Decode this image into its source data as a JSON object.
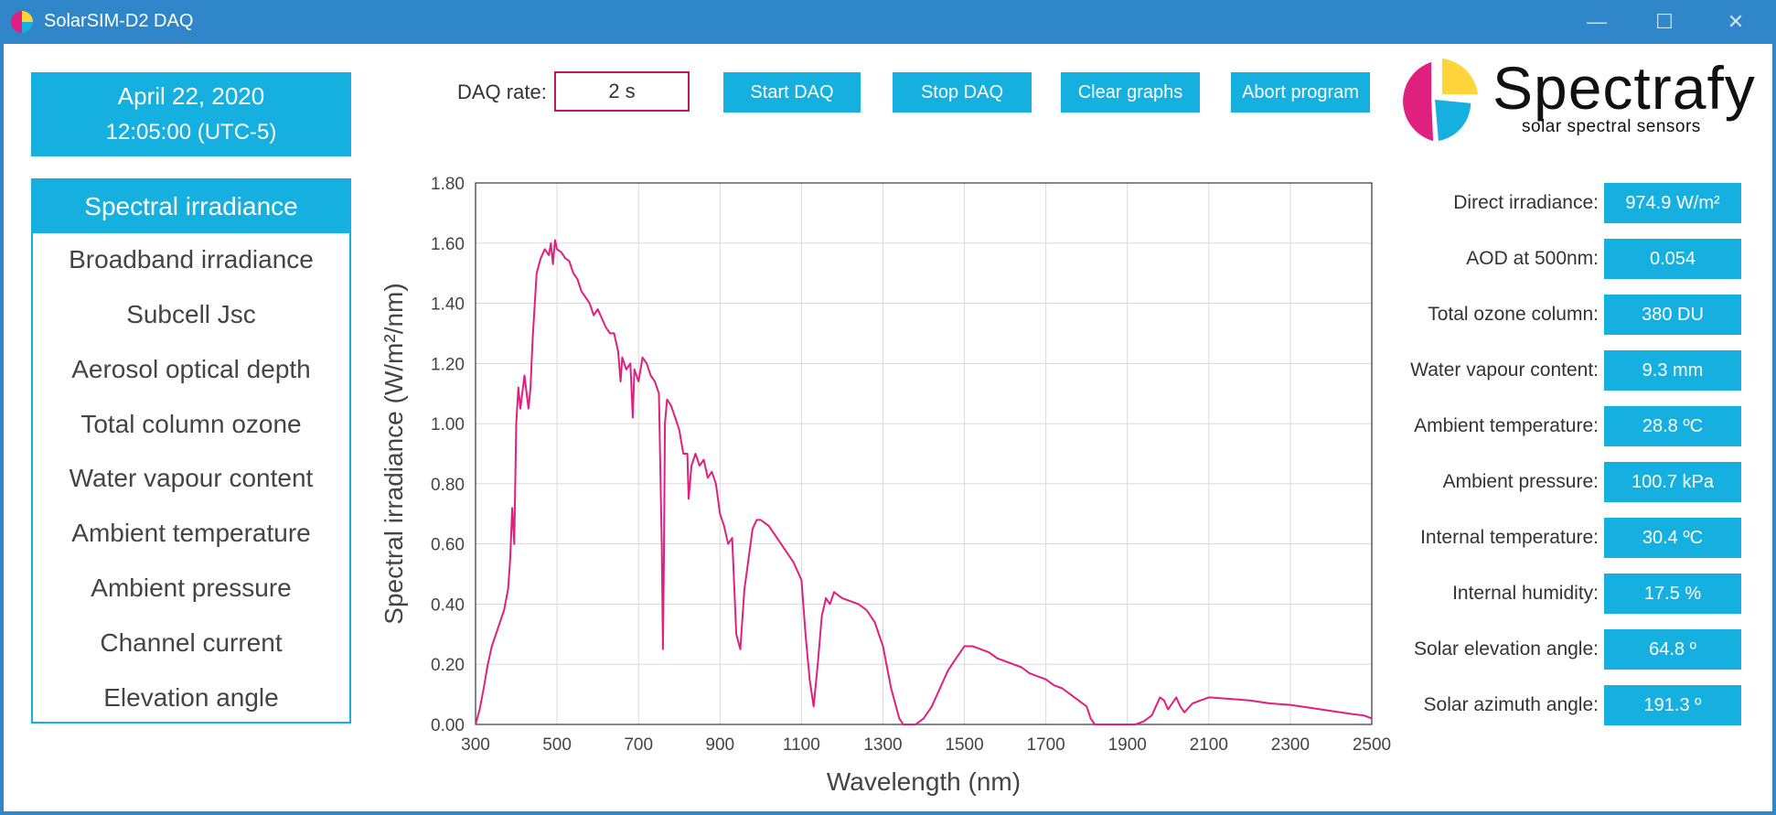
{
  "window": {
    "title": "SolarSIM-D2 DAQ",
    "minimize": "—",
    "maximize": "☐",
    "close": "✕"
  },
  "datetime": {
    "date": "April 22, 2020",
    "time": "12:05:00 (UTC-5)"
  },
  "menu": {
    "items": [
      "Spectral irradiance",
      "Broadband irradiance",
      "Subcell Jsc",
      "Aerosol optical depth",
      "Total column ozone",
      "Water vapour content",
      "Ambient temperature",
      "Ambient pressure",
      "Channel current",
      "Elevation angle"
    ],
    "active_index": 0
  },
  "toolbar": {
    "daq_rate_label": "DAQ rate:",
    "daq_rate_value": "2 s",
    "start": "Start DAQ",
    "stop": "Stop DAQ",
    "clear": "Clear graphs",
    "abort": "Abort program"
  },
  "logo": {
    "name": "Spectrafy",
    "tagline": "solar spectral sensors",
    "colors": [
      "#e0207e",
      "#ffd43b",
      "#16b0e0"
    ]
  },
  "readouts": [
    {
      "label": "Direct irradiance:",
      "value": "974.9 W/m²"
    },
    {
      "label": "AOD at 500nm:",
      "value": "0.054"
    },
    {
      "label": "Total ozone column:",
      "value": "380 DU"
    },
    {
      "label": "Water vapour content:",
      "value": "9.3 mm"
    },
    {
      "label": "Ambient temperature:",
      "value": "28.8 ºC"
    },
    {
      "label": "Ambient pressure:",
      "value": "100.7 kPa"
    },
    {
      "label": "Internal temperature:",
      "value": "30.4 ºC"
    },
    {
      "label": "Internal humidity:",
      "value": "17.5 %"
    },
    {
      "label": "Solar elevation angle:",
      "value": "64.8 º"
    },
    {
      "label": "Solar azimuth angle:",
      "value": "191.3 º"
    }
  ],
  "colors": {
    "accent": "#16b0e0",
    "titlebar": "#2f86c8",
    "series": "#e0207e"
  },
  "chart_data": {
    "type": "line",
    "title": "",
    "xlabel": "Wavelength (nm)",
    "ylabel": "Spectral irradiance (W/m²/nm)",
    "xlim": [
      300,
      2500
    ],
    "ylim": [
      0,
      1.8
    ],
    "xticks": [
      "300",
      "500",
      "700",
      "900",
      "1100",
      "1300",
      "1500",
      "1700",
      "1900",
      "2100",
      "2300",
      "2500"
    ],
    "yticks": [
      "0.00",
      "0.20",
      "0.40",
      "0.60",
      "0.80",
      "1.00",
      "1.20",
      "1.40",
      "1.60",
      "1.80"
    ],
    "grid": true,
    "series": [
      {
        "color": "#e0207e",
        "x": [
          300,
          310,
          320,
          330,
          340,
          350,
          360,
          370,
          380,
          385,
          390,
          395,
          400,
          405,
          410,
          420,
          430,
          435,
          440,
          450,
          460,
          470,
          480,
          485,
          490,
          495,
          500,
          510,
          520,
          530,
          540,
          550,
          560,
          570,
          580,
          590,
          600,
          610,
          620,
          630,
          640,
          650,
          656,
          660,
          670,
          680,
          686,
          690,
          700,
          710,
          720,
          730,
          740,
          750,
          757,
          760,
          762,
          765,
          770,
          780,
          790,
          800,
          810,
          820,
          823,
          830,
          840,
          850,
          860,
          870,
          880,
          890,
          900,
          910,
          920,
          930,
          940,
          950,
          960,
          970,
          980,
          990,
          1000,
          1020,
          1040,
          1060,
          1080,
          1100,
          1110,
          1120,
          1130,
          1140,
          1150,
          1160,
          1170,
          1180,
          1200,
          1220,
          1240,
          1260,
          1280,
          1300,
          1320,
          1340,
          1350,
          1360,
          1380,
          1400,
          1420,
          1440,
          1460,
          1480,
          1500,
          1520,
          1540,
          1560,
          1580,
          1600,
          1620,
          1640,
          1660,
          1680,
          1700,
          1720,
          1740,
          1760,
          1780,
          1800,
          1810,
          1820,
          1840,
          1860,
          1900,
          1920,
          1940,
          1960,
          1970,
          1980,
          1990,
          2000,
          2010,
          2020,
          2030,
          2040,
          2060,
          2080,
          2100,
          2150,
          2200,
          2250,
          2300,
          2350,
          2400,
          2450,
          2480,
          2500
        ],
        "y": [
          0.0,
          0.05,
          0.12,
          0.2,
          0.26,
          0.3,
          0.34,
          0.38,
          0.45,
          0.55,
          0.72,
          0.6,
          1.0,
          1.12,
          1.05,
          1.16,
          1.05,
          1.12,
          1.28,
          1.5,
          1.55,
          1.58,
          1.56,
          1.6,
          1.53,
          1.61,
          1.58,
          1.57,
          1.55,
          1.54,
          1.5,
          1.48,
          1.44,
          1.42,
          1.4,
          1.36,
          1.38,
          1.35,
          1.32,
          1.3,
          1.3,
          1.24,
          1.14,
          1.22,
          1.18,
          1.2,
          1.02,
          1.18,
          1.14,
          1.22,
          1.2,
          1.16,
          1.14,
          1.1,
          0.6,
          0.25,
          0.5,
          1.0,
          1.08,
          1.06,
          1.02,
          0.98,
          0.9,
          0.9,
          0.75,
          0.86,
          0.9,
          0.86,
          0.88,
          0.82,
          0.84,
          0.8,
          0.7,
          0.66,
          0.6,
          0.62,
          0.3,
          0.25,
          0.45,
          0.55,
          0.65,
          0.68,
          0.68,
          0.66,
          0.62,
          0.58,
          0.54,
          0.48,
          0.3,
          0.15,
          0.06,
          0.2,
          0.36,
          0.42,
          0.4,
          0.44,
          0.42,
          0.41,
          0.4,
          0.38,
          0.34,
          0.26,
          0.12,
          0.02,
          0.0,
          0.0,
          0.0,
          0.02,
          0.06,
          0.12,
          0.18,
          0.22,
          0.26,
          0.26,
          0.25,
          0.24,
          0.22,
          0.21,
          0.2,
          0.19,
          0.17,
          0.16,
          0.15,
          0.13,
          0.12,
          0.1,
          0.08,
          0.06,
          0.02,
          0.0,
          0.0,
          0.0,
          0.0,
          0.0,
          0.01,
          0.03,
          0.06,
          0.09,
          0.08,
          0.05,
          0.07,
          0.09,
          0.06,
          0.04,
          0.07,
          0.08,
          0.09,
          0.085,
          0.08,
          0.07,
          0.065,
          0.055,
          0.045,
          0.035,
          0.03,
          0.02
        ]
      }
    ]
  }
}
